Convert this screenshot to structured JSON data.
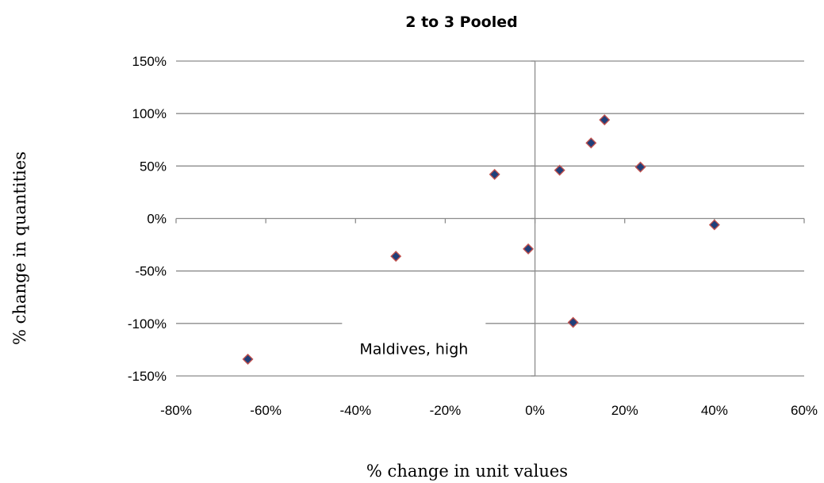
{
  "chart_data": {
    "type": "scatter",
    "title": "2 to 3 Pooled",
    "xlabel": "% change in unit values",
    "ylabel": "% change in quantities",
    "xlim": [
      -80,
      60
    ],
    "ylim": [
      -150,
      150
    ],
    "x_ticks": [
      -80,
      -60,
      -40,
      -20,
      0,
      20,
      40,
      60
    ],
    "y_ticks": [
      -150,
      -100,
      -50,
      0,
      50,
      100,
      150
    ],
    "x_tick_labels": [
      "-80%",
      "-60%",
      "-40%",
      "-20%",
      "0%",
      "20%",
      "40%",
      "60%"
    ],
    "y_tick_labels": [
      "-150%",
      "-100%",
      "-50%",
      "0%",
      "50%",
      "100%",
      "150%"
    ],
    "grid": "horizontal",
    "point_color": "#1f3f7a",
    "point_edge_color": "#c0504d",
    "points": [
      {
        "x": -64,
        "y": -134
      },
      {
        "x": -31,
        "y": -36
      },
      {
        "x": -9,
        "y": 42
      },
      {
        "x": -1.5,
        "y": -29
      },
      {
        "x": 5.5,
        "y": 46
      },
      {
        "x": 8.5,
        "y": -99
      },
      {
        "x": 12.5,
        "y": 72
      },
      {
        "x": 15.5,
        "y": 94
      },
      {
        "x": 23.5,
        "y": 49
      },
      {
        "x": 40,
        "y": -6
      }
    ],
    "annotations": [
      {
        "text": "Maldives, high",
        "x": -27,
        "y": -124
      }
    ]
  }
}
